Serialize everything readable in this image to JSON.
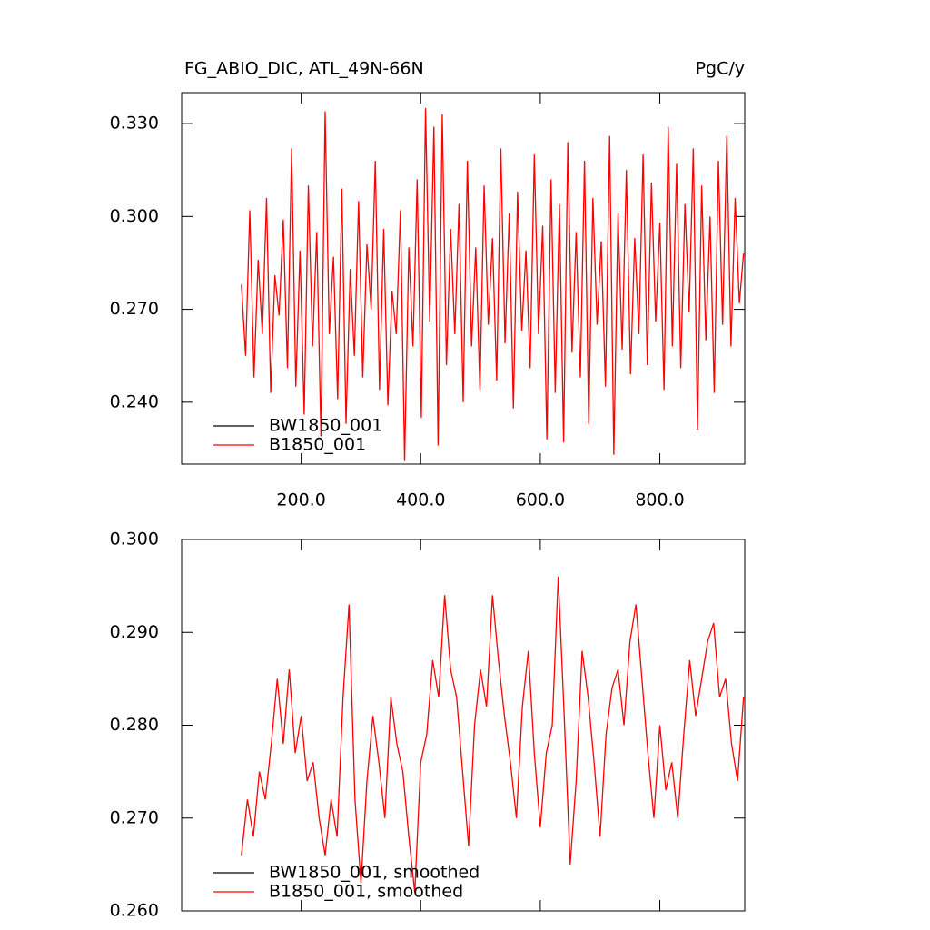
{
  "chart_data": [
    {
      "type": "line",
      "title": "FG_ABIO_DIC, ATL_49N-66N",
      "units": "PgC/y",
      "xlim": [
        0,
        942
      ],
      "ylim": [
        0.22,
        0.34
      ],
      "xticks": [
        {
          "value": 200,
          "label": "200.0"
        },
        {
          "value": 400,
          "label": "400.0"
        },
        {
          "value": 600,
          "label": "600.0"
        },
        {
          "value": 800,
          "label": "800.0"
        }
      ],
      "yticks": [
        {
          "value": 0.24,
          "label": "0.240"
        },
        {
          "value": 0.27,
          "label": "0.270"
        },
        {
          "value": 0.3,
          "label": "0.300"
        },
        {
          "value": 0.33,
          "label": "0.330"
        }
      ],
      "x": [
        100,
        107,
        114,
        121,
        128,
        135,
        142,
        149,
        156,
        163,
        170,
        177,
        184,
        191,
        198,
        205,
        212,
        219,
        226,
        233,
        240,
        247,
        254,
        261,
        268,
        275,
        282,
        289,
        296,
        303,
        310,
        317,
        324,
        331,
        338,
        345,
        352,
        359,
        366,
        373,
        380,
        387,
        394,
        401,
        408,
        415,
        422,
        429,
        436,
        443,
        450,
        457,
        464,
        471,
        478,
        485,
        492,
        499,
        506,
        513,
        520,
        527,
        534,
        541,
        548,
        555,
        562,
        569,
        576,
        583,
        590,
        597,
        604,
        611,
        618,
        625,
        632,
        639,
        646,
        653,
        660,
        667,
        674,
        681,
        688,
        695,
        702,
        709,
        716,
        723,
        730,
        737,
        744,
        751,
        758,
        765,
        772,
        779,
        786,
        793,
        800,
        807,
        814,
        821,
        828,
        835,
        842,
        849,
        856,
        863,
        870,
        877,
        884,
        891,
        898,
        905,
        912,
        919,
        926,
        933,
        940
      ],
      "series": [
        {
          "name": "BW1850_001",
          "color": "#000000",
          "values": [
            null,
            null,
            null,
            null,
            null,
            null,
            null,
            null,
            null,
            null,
            null,
            null,
            null,
            null,
            null,
            null,
            null,
            null,
            null,
            null,
            null,
            null,
            null,
            null,
            null,
            null,
            null,
            null,
            null,
            null,
            null,
            null,
            null,
            null,
            null,
            null,
            null,
            null,
            null,
            null,
            null,
            null,
            null,
            null,
            null,
            null,
            null,
            null,
            null,
            null,
            null,
            null,
            null,
            null,
            null,
            null,
            null,
            null,
            null,
            null,
            null,
            null,
            null,
            null,
            null,
            null,
            null,
            null,
            null,
            null,
            null,
            null,
            null,
            null,
            null,
            null,
            null,
            null,
            null,
            null,
            null,
            null,
            null,
            null,
            null,
            null,
            null,
            null,
            null,
            null,
            null,
            null,
            null,
            null,
            null,
            null,
            null,
            null,
            null,
            null,
            null,
            null,
            null,
            null,
            null,
            null,
            null,
            null,
            null,
            null,
            null,
            null,
            null,
            null,
            null,
            null,
            null,
            null,
            null,
            null,
            null
          ]
        },
        {
          "name": "B1850_001",
          "color": "#ff0000",
          "values": [
            0.278,
            0.255,
            0.302,
            0.248,
            0.286,
            0.262,
            0.306,
            0.243,
            0.281,
            0.268,
            0.299,
            0.251,
            0.322,
            0.245,
            0.289,
            0.236,
            0.31,
            0.258,
            0.295,
            0.229,
            0.334,
            0.262,
            0.287,
            0.241,
            0.309,
            0.233,
            0.283,
            0.255,
            0.305,
            0.248,
            0.291,
            0.27,
            0.318,
            0.244,
            0.296,
            0.239,
            0.276,
            0.262,
            0.302,
            0.221,
            0.29,
            0.258,
            0.312,
            0.235,
            0.335,
            0.266,
            0.329,
            0.226,
            0.333,
            0.252,
            0.296,
            0.262,
            0.304,
            0.24,
            0.318,
            0.258,
            0.29,
            0.244,
            0.31,
            0.265,
            0.293,
            0.247,
            0.322,
            0.259,
            0.301,
            0.238,
            0.308,
            0.263,
            0.289,
            0.251,
            0.32,
            0.262,
            0.297,
            0.228,
            0.312,
            0.243,
            0.304,
            0.227,
            0.324,
            0.256,
            0.295,
            0.248,
            0.318,
            0.233,
            0.306,
            0.265,
            0.292,
            0.245,
            0.326,
            0.223,
            0.301,
            0.257,
            0.315,
            0.249,
            0.293,
            0.262,
            0.32,
            0.252,
            0.311,
            0.266,
            0.298,
            0.244,
            0.329,
            0.258,
            0.317,
            0.251,
            0.304,
            0.269,
            0.322,
            0.231,
            0.31,
            0.26,
            0.3,
            0.243,
            0.318,
            0.265,
            0.326,
            0.258,
            0.306,
            0.272,
            0.288
          ]
        }
      ]
    },
    {
      "type": "line",
      "xlim": [
        0,
        942
      ],
      "ylim": [
        0.26,
        0.3
      ],
      "yticks": [
        {
          "value": 0.26,
          "label": "0.260"
        },
        {
          "value": 0.27,
          "label": "0.270"
        },
        {
          "value": 0.28,
          "label": "0.280"
        },
        {
          "value": 0.29,
          "label": "0.290"
        },
        {
          "value": 0.3,
          "label": "0.300"
        }
      ],
      "x": [
        100,
        110,
        120,
        130,
        140,
        150,
        160,
        170,
        180,
        190,
        200,
        210,
        220,
        230,
        240,
        250,
        260,
        270,
        280,
        290,
        300,
        310,
        320,
        330,
        340,
        350,
        360,
        370,
        380,
        390,
        400,
        410,
        420,
        430,
        440,
        450,
        460,
        470,
        480,
        490,
        500,
        510,
        520,
        530,
        540,
        550,
        560,
        570,
        580,
        590,
        600,
        610,
        620,
        630,
        640,
        650,
        660,
        670,
        680,
        690,
        700,
        710,
        720,
        730,
        740,
        750,
        760,
        770,
        780,
        790,
        800,
        810,
        820,
        830,
        840,
        850,
        860,
        870,
        880,
        890,
        900,
        910,
        920,
        930,
        940
      ],
      "series": [
        {
          "name": "BW1850_001, smoothed",
          "color": "#000000",
          "values": [
            null,
            null,
            null,
            null,
            null,
            null,
            null,
            null,
            null,
            null,
            null,
            null,
            null,
            null,
            null,
            null,
            null,
            null,
            null,
            null,
            null,
            null,
            null,
            null,
            null,
            null,
            null,
            null,
            null,
            null,
            null,
            null,
            null,
            null,
            null,
            null,
            null,
            null,
            null,
            null,
            null,
            null,
            null,
            null,
            null,
            null,
            null,
            null,
            null,
            null,
            null,
            null,
            null,
            null,
            null,
            null,
            null,
            null,
            null,
            null,
            null,
            null,
            null,
            null,
            null,
            null,
            null,
            null,
            null,
            null,
            null,
            null,
            null,
            null,
            null,
            null,
            null,
            null,
            null,
            null,
            null,
            null,
            null,
            null,
            null
          ]
        },
        {
          "name": "B1850_001, smoothed",
          "color": "#ff0000",
          "values": [
            0.266,
            0.272,
            0.268,
            0.275,
            0.272,
            0.278,
            0.285,
            0.278,
            0.286,
            0.277,
            0.281,
            0.274,
            0.276,
            0.27,
            0.266,
            0.272,
            0.268,
            0.283,
            0.293,
            0.272,
            0.263,
            0.274,
            0.281,
            0.276,
            0.27,
            0.283,
            0.278,
            0.275,
            0.268,
            0.262,
            0.276,
            0.279,
            0.287,
            0.283,
            0.294,
            0.286,
            0.283,
            0.275,
            0.267,
            0.28,
            0.286,
            0.282,
            0.294,
            0.287,
            0.281,
            0.276,
            0.27,
            0.282,
            0.288,
            0.277,
            0.269,
            0.277,
            0.28,
            0.296,
            0.281,
            0.265,
            0.274,
            0.288,
            0.283,
            0.276,
            0.268,
            0.279,
            0.284,
            0.286,
            0.28,
            0.289,
            0.293,
            0.285,
            0.277,
            0.27,
            0.28,
            0.273,
            0.276,
            0.27,
            0.279,
            0.287,
            0.281,
            0.285,
            0.289,
            0.291,
            0.283,
            0.285,
            0.278,
            0.274,
            0.283
          ]
        }
      ]
    }
  ]
}
